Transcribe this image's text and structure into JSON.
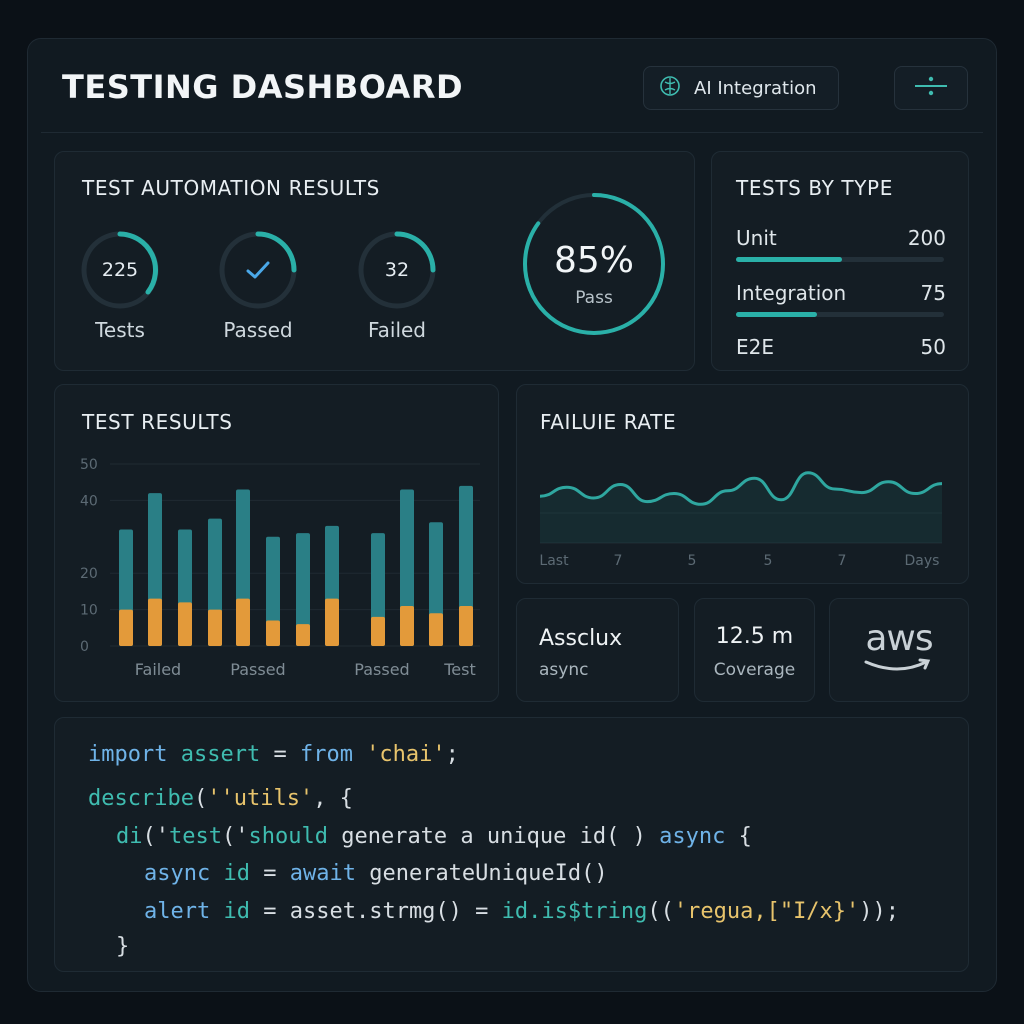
{
  "header": {
    "title": "TESTING DASHBOARD",
    "ai_button_label": "AI Integration"
  },
  "automation": {
    "title": "TEST AUTOMATION RESULTS",
    "tests_value": "225",
    "tests_label": "Tests",
    "passed_label": "Passed",
    "failed_value": "32",
    "failed_label": "Failed",
    "pass_percent": "85%",
    "pass_label": "Pass",
    "pass_fraction": 0.85
  },
  "types": {
    "title": "TESTS BY TYPE",
    "items": [
      {
        "label": "Unit",
        "value": "200",
        "fraction": 0.51
      },
      {
        "label": "Integration",
        "value": "75",
        "fraction": 0.39
      },
      {
        "label": "E2E",
        "value": "50",
        "fraction": 0.0
      }
    ]
  },
  "results": {
    "title": "TEST RESULTS",
    "x_labels": [
      "Failed",
      "Passed",
      "Passed",
      "Test"
    ]
  },
  "failure": {
    "title": "FAILUIE RATE",
    "x_labels": [
      "Last",
      "7",
      "5",
      "5",
      "7",
      "Days"
    ]
  },
  "stats": {
    "name": "Assclux",
    "name_sub": "async",
    "coverage_value": "12.5 m",
    "coverage_label": "Coverage",
    "logo_text": "aws"
  },
  "code": {
    "l1": {
      "a": "import",
      "b": " assert",
      "c": " = ",
      "d": "from",
      "e": " 'chai'",
      "f": ";"
    },
    "l2": {
      "a": "describe",
      "b": "(",
      "c": "''utils'",
      "d": ", {"
    },
    "l3": {
      "a": "di",
      "b": "('",
      "c": "test",
      "d": "('",
      "e": "should",
      "f": " generate a unique id( ) ",
      "g": "async",
      "h": " {"
    },
    "l4": {
      "a": "async",
      "b": " id",
      "c": " = ",
      "d": "await",
      "e": " generateUniqueId()"
    },
    "l5": {
      "a": "alert",
      "b": " id",
      "c": " = ",
      "d": "asset.strmg() = ",
      "e": "id.is$tring",
      "f": "((",
      "g": "'regua,[\"I/x}'",
      "h": "));"
    },
    "l6": {
      "a": "}"
    }
  },
  "chart_data": [
    {
      "type": "bar",
      "y_ticks": [
        0,
        10,
        20,
        40,
        50
      ],
      "ylim": [
        0,
        50
      ],
      "x_labels": [
        "Failed",
        "Passed",
        "Passed",
        "Test"
      ],
      "series": [
        {
          "values": [
            10,
            13,
            12,
            10,
            13,
            7,
            6,
            13,
            8,
            11,
            9,
            11
          ]
        },
        {
          "values": [
            32,
            42,
            32,
            35,
            43,
            30,
            31,
            33,
            31,
            43,
            34,
            44
          ]
        }
      ],
      "colors": [
        "#e39a3a",
        "#2a7f86"
      ]
    },
    {
      "type": "line",
      "x_labels": [
        "Last",
        "7",
        "5",
        "5",
        "7",
        "Days"
      ],
      "values": [
        0.52,
        0.62,
        0.5,
        0.65,
        0.46,
        0.55,
        0.43,
        0.58,
        0.72,
        0.48,
        0.78,
        0.6,
        0.56,
        0.68,
        0.55,
        0.66
      ],
      "color": "#2fa7a0"
    }
  ]
}
